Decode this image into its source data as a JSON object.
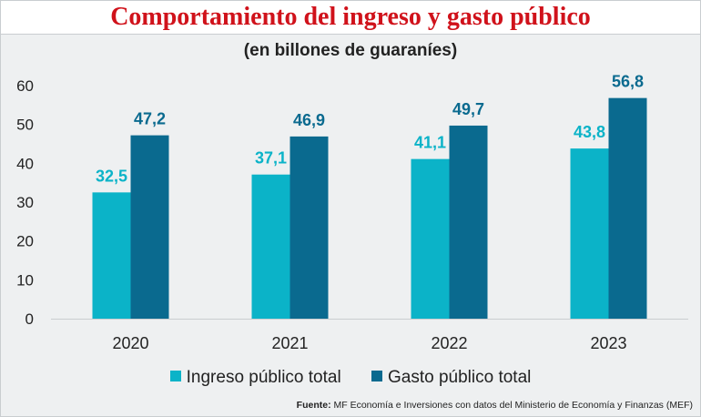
{
  "chart_data": {
    "type": "bar",
    "title": "Comportamiento del ingreso y gasto público",
    "subtitle": "(en billones de guaraníes)",
    "categories": [
      "2020",
      "2021",
      "2022",
      "2023"
    ],
    "series": [
      {
        "name": "Ingreso público total",
        "values": [
          32.5,
          37.1,
          41.1,
          43.8
        ],
        "labels": [
          "32,5",
          "37,1",
          "41,1",
          "43,8"
        ],
        "color": "#0bb3c8"
      },
      {
        "name": "Gasto público total",
        "values": [
          47.2,
          46.9,
          49.7,
          56.8
        ],
        "labels": [
          "47,2",
          "46,9",
          "49,7",
          "56,8"
        ],
        "color": "#0a6a8f"
      }
    ],
    "yticks": [
      "0",
      "10",
      "20",
      "30",
      "40",
      "50",
      "60"
    ],
    "ylim": [
      0,
      60
    ],
    "xlabel": "",
    "ylabel": "",
    "grid": false,
    "legend_position": "bottom"
  },
  "source": {
    "label": "Fuente:",
    "text": "MF Economía e Inversiones con datos del Ministerio de Economía y Finanzas (MEF)"
  }
}
